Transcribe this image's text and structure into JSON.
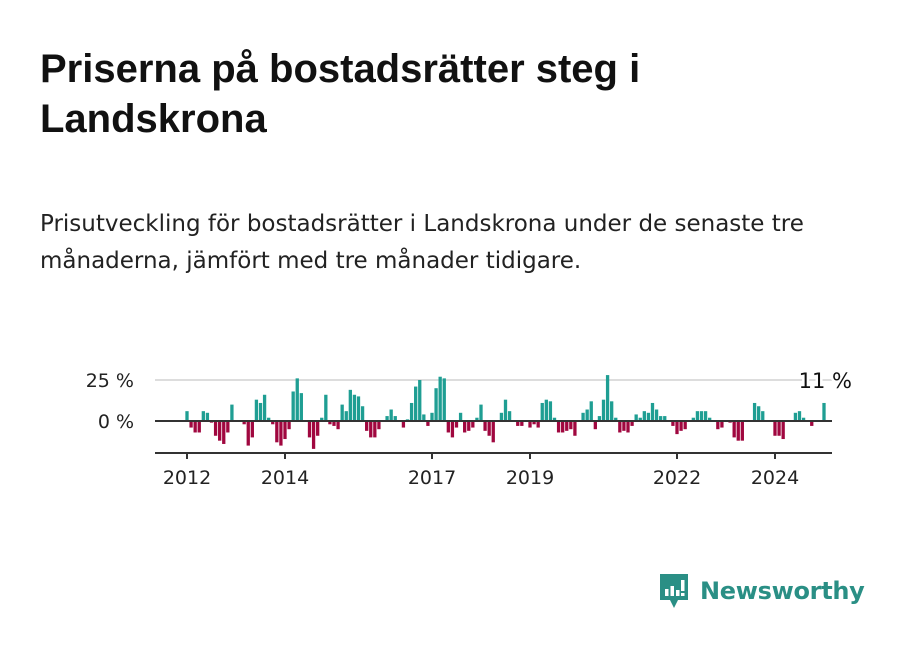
{
  "title": "Priserna på bostadsrätter steg i Landskrona",
  "subtitle": "Prisutveckling för bostadsrätter i Landskrona under de senaste tre månaderna, jämfört med tre månader tidigare.",
  "logo": {
    "name": "Newsworthy",
    "color": "#2a8f85"
  },
  "chart_data": {
    "type": "bar",
    "title": "",
    "xlabel": "",
    "ylabel": "",
    "ylim": [
      -18,
      28
    ],
    "grid": true,
    "y_ticks": [
      {
        "value": 25,
        "label": "25 %"
      },
      {
        "value": 0,
        "label": "0 %"
      }
    ],
    "x_ticks": [
      {
        "value": 2012,
        "label": "2012"
      },
      {
        "value": 2014,
        "label": "2014"
      },
      {
        "value": 2017,
        "label": "2017"
      },
      {
        "value": 2019,
        "label": "2019"
      },
      {
        "value": 2022,
        "label": "2022"
      },
      {
        "value": 2024,
        "label": "2024"
      }
    ],
    "start_year": 2012,
    "period": "monthly",
    "positive_color": "#1f9e93",
    "negative_color": "#a0073f",
    "last_value_label": "11 %",
    "values": [
      6,
      -4,
      -7,
      -7,
      6,
      5,
      -1,
      -9,
      -12,
      -14,
      -7,
      10,
      0,
      0,
      -2,
      -15,
      -10,
      13,
      11,
      16,
      2,
      -2,
      -13,
      -15,
      -11,
      -5,
      18,
      26,
      17,
      0,
      -10,
      -17,
      -9,
      2,
      16,
      -2,
      -3,
      -5,
      10,
      6,
      19,
      16,
      15,
      9,
      -6,
      -10,
      -10,
      -5,
      0,
      3,
      7,
      3,
      0,
      -4,
      1,
      11,
      21,
      25,
      4,
      -3,
      5,
      20,
      27,
      26,
      -7,
      -10,
      -4,
      5,
      -7,
      -6,
      -4,
      2,
      10,
      -6,
      -9,
      -13,
      0,
      5,
      13,
      6,
      0,
      -3,
      -3,
      0,
      -4,
      -2,
      -4,
      11,
      13,
      12,
      2,
      -7,
      -7,
      -6,
      -5,
      -9,
      0,
      5,
      7,
      12,
      -5,
      3,
      13,
      28,
      12,
      2,
      -7,
      -6,
      -7,
      -3,
      4,
      2,
      6,
      5,
      11,
      7,
      3,
      3,
      0,
      -3,
      -8,
      -6,
      -5,
      0,
      2,
      6,
      6,
      6,
      2,
      0,
      -5,
      -4,
      0,
      -1,
      -10,
      -12,
      -12,
      0,
      0,
      11,
      9,
      6,
      0,
      0,
      -9,
      -9,
      -11,
      0,
      0,
      5,
      6,
      2,
      0,
      -3,
      0,
      0,
      11
    ]
  }
}
